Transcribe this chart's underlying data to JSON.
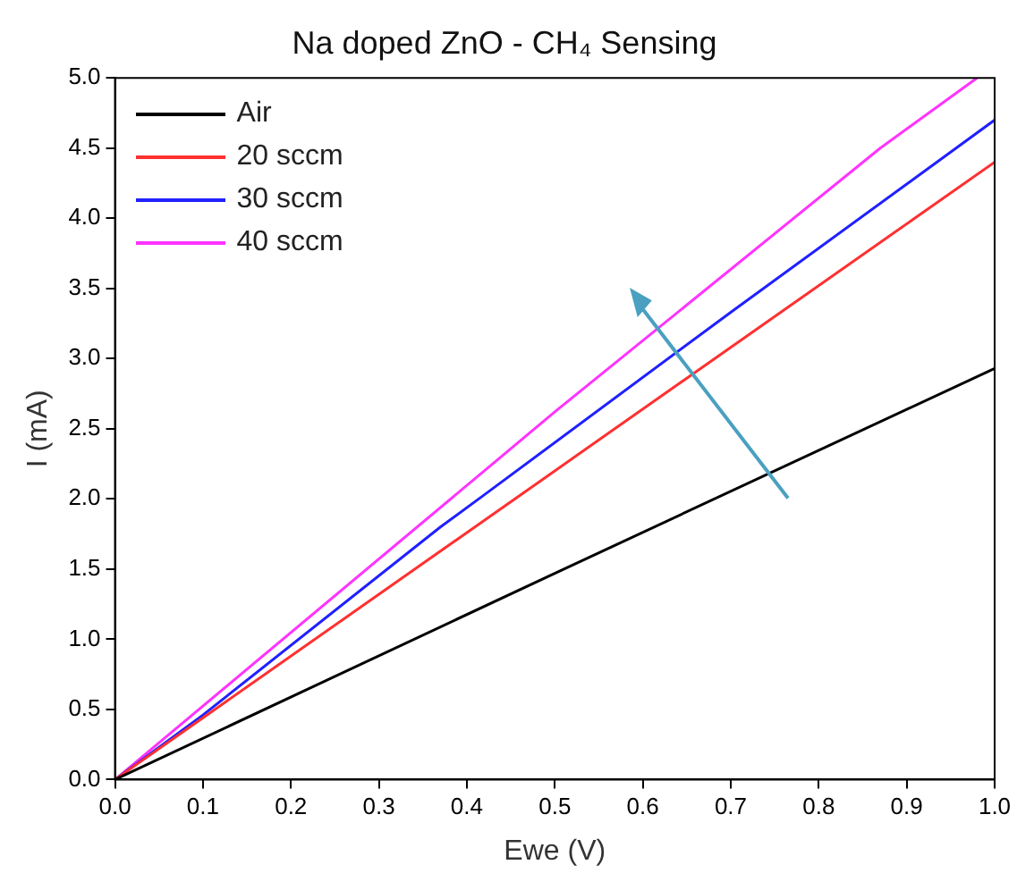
{
  "chart_data": {
    "type": "line",
    "title": "Na doped ZnO - CH₄ Sensing",
    "xlabel": "Ewe (V)",
    "ylabel": "I (mA)",
    "xlim": [
      0,
      1
    ],
    "xticks": [
      {
        "value": 0,
        "label": "0.0"
      },
      0.1,
      0.2,
      0.3,
      0.4,
      0.5,
      0.6,
      0.7,
      0.8,
      0.9,
      {
        "value": 1,
        "label": "1.0"
      }
    ],
    "ylim": [
      0,
      5
    ],
    "yticks": [
      {
        "value": 0,
        "label": "0.0"
      },
      0.5,
      {
        "value": 1,
        "label": "1.0"
      },
      1.5,
      {
        "value": 2,
        "label": "2.0"
      },
      2.5,
      {
        "value": 3,
        "label": "3.0"
      },
      3.5,
      {
        "value": 4,
        "label": "4.0"
      },
      4.5,
      {
        "value": 5,
        "label": "5.0"
      }
    ],
    "grid": false,
    "legend": "top left",
    "marker": "none",
    "line_style": "solid",
    "series": [
      {
        "name": "Air",
        "color": "#000000",
        "x": [
          0,
          0.5,
          1.0
        ],
        "values": [
          0,
          1.47,
          2.93
        ]
      },
      {
        "name": "20 sccm",
        "color": "#ff3030",
        "x": [
          0,
          0.5,
          1.0
        ],
        "values": [
          0,
          2.2,
          4.4
        ]
      },
      {
        "name": "30 sccm",
        "color": "#2020ff",
        "x": [
          0,
          0.1,
          0.37,
          0.42,
          0.7,
          1.0
        ],
        "values": [
          0,
          0.46,
          1.8,
          2.03,
          3.33,
          4.7
        ]
      },
      {
        "name": "40 sccm",
        "color": "#ff33ff",
        "x": [
          0,
          0.5,
          0.87,
          0.98
        ],
        "values": [
          0,
          2.62,
          4.5,
          5.0
        ]
      }
    ]
  }
}
